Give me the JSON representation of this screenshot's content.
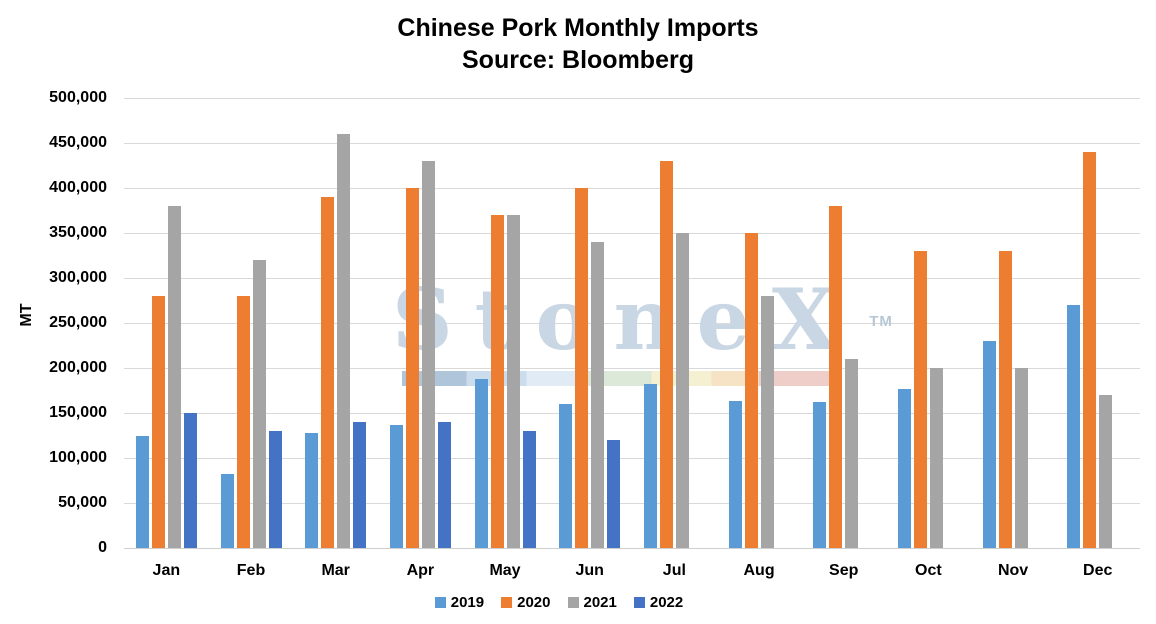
{
  "title": "Chinese Pork Monthly Imports",
  "subtitle": "Source: Bloomberg",
  "y_axis_label": "MT",
  "watermark": {
    "text": "StoneX",
    "tm": "TM",
    "text_color": "#C9D6E3",
    "band": [
      {
        "color": "#AFC5DA",
        "pct": 15
      },
      {
        "color": "#CBDCEC",
        "pct": 14
      },
      {
        "color": "#E0EBF5",
        "pct": 12
      },
      {
        "color": "#DCE8D8",
        "pct": 17
      },
      {
        "color": "#F6F0D2",
        "pct": 14
      },
      {
        "color": "#F6E2C4",
        "pct": 11
      },
      {
        "color": "#EFCEC9",
        "pct": 17
      }
    ]
  },
  "legend": [
    {
      "label": "2019",
      "color": "#5B9BD5"
    },
    {
      "label": "2020",
      "color": "#ED7D31"
    },
    {
      "label": "2021",
      "color": "#A5A5A5"
    },
    {
      "label": "2022",
      "color": "#4472C4"
    }
  ],
  "chart_data": {
    "type": "bar",
    "title": "Chinese Pork Monthly Imports",
    "subtitle": "Source: Bloomberg",
    "ylabel": "MT",
    "xlabel": "",
    "ylim": [
      0,
      500000
    ],
    "ytick_step": 50000,
    "ytick_labels": [
      "0",
      "50,000",
      "100,000",
      "150,000",
      "200,000",
      "250,000",
      "300,000",
      "350,000",
      "400,000",
      "450,000",
      "500,000"
    ],
    "grid": true,
    "legend_position": "bottom",
    "categories": [
      "Jan",
      "Feb",
      "Mar",
      "Apr",
      "May",
      "Jun",
      "Jul",
      "Aug",
      "Sep",
      "Oct",
      "Nov",
      "Dec"
    ],
    "series": [
      {
        "name": "2019",
        "color": "#5B9BD5",
        "values": [
          125000,
          82000,
          128000,
          137000,
          188000,
          160000,
          182000,
          163000,
          162000,
          177000,
          230000,
          270000
        ]
      },
      {
        "name": "2020",
        "color": "#ED7D31",
        "values": [
          280000,
          280000,
          390000,
          400000,
          370000,
          400000,
          430000,
          350000,
          380000,
          330000,
          330000,
          440000
        ]
      },
      {
        "name": "2021",
        "color": "#A5A5A5",
        "values": [
          380000,
          320000,
          460000,
          430000,
          370000,
          340000,
          350000,
          280000,
          210000,
          200000,
          200000,
          170000
        ]
      },
      {
        "name": "2022",
        "color": "#4472C4",
        "values": [
          150000,
          130000,
          140000,
          140000,
          130000,
          120000,
          null,
          null,
          null,
          null,
          null,
          null
        ]
      }
    ]
  }
}
